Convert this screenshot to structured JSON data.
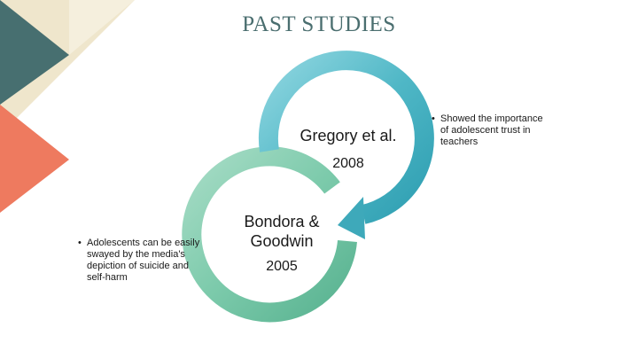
{
  "slide": {
    "title": "PAST STUDIES"
  },
  "colors": {
    "teal_dark": "#476f70",
    "cream": "#efe6cc",
    "coral": "#ee7a5f",
    "upper_ring": "#4fb7c6",
    "lower_ring": "#7ccaab",
    "title": "#4a6e6f"
  },
  "studies": [
    {
      "name": "Gregory et al.",
      "year": "2008",
      "finding": "Showed the importance of adolescent trust in teachers"
    },
    {
      "name_line1": "Bondora &",
      "name_line2": "Goodwin",
      "year": "2005",
      "finding": "Adolescents can be easily swayed by the media's depiction of suicide and self-harm"
    }
  ],
  "icons": [
    "bullet-dot"
  ]
}
